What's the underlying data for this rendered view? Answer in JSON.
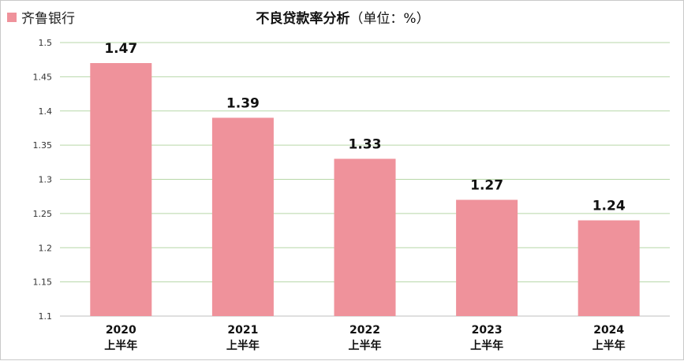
{
  "title": "不良贷款率分析",
  "title_unit": "（单位：%）",
  "legend": {
    "label": "齐鲁银行",
    "color": "#ef929b"
  },
  "chart_data": {
    "type": "bar",
    "title": "不良贷款率分析（单位：%）",
    "categories": [
      [
        "2020",
        "上半年"
      ],
      [
        "2021",
        "上半年"
      ],
      [
        "2022",
        "上半年"
      ],
      [
        "2023",
        "上半年"
      ],
      [
        "2024",
        "上半年"
      ]
    ],
    "series": [
      {
        "name": "齐鲁银行",
        "values": [
          1.47,
          1.39,
          1.33,
          1.27,
          1.24
        ],
        "color": "#ef929b"
      }
    ],
    "value_labels": [
      "1.47",
      "1.39",
      "1.33",
      "1.27",
      "1.24"
    ],
    "y_ticks": [
      "1.1",
      "1.15",
      "1.2",
      "1.25",
      "1.3",
      "1.35",
      "1.4",
      "1.45",
      "1.5"
    ],
    "ylim": [
      1.1,
      1.5
    ],
    "grid": true,
    "gridline_color": "#b7d7a8",
    "legend_position": "top-left"
  }
}
